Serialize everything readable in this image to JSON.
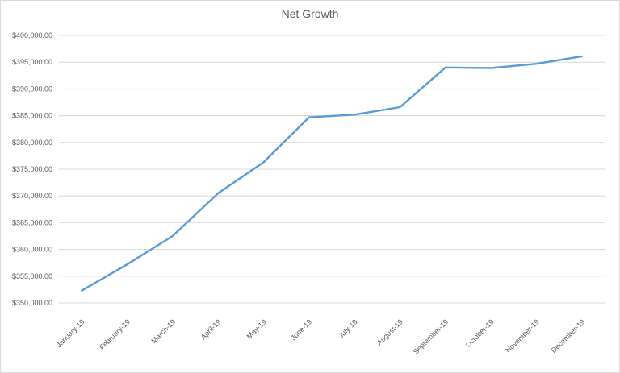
{
  "chart_data": {
    "type": "line",
    "title": "Net Growth",
    "xlabel": "",
    "ylabel": "",
    "categories": [
      "January-19",
      "February-19",
      "March-19",
      "April-19",
      "May-19",
      "June-19",
      "July-19",
      "August-19",
      "September-19",
      "October-19",
      "November-19",
      "December-19"
    ],
    "series": [
      {
        "values": [
          352300,
          357200,
          362500,
          370500,
          376300,
          384700,
          385200,
          386600,
          394000,
          393900,
          394700,
          396100
        ]
      }
    ],
    "ylim": [
      350000,
      400000
    ],
    "ytick_step": 5000,
    "ytick_labels": [
      "$350,000.00",
      "$355,000.00",
      "$360,000.00",
      "$365,000.00",
      "$370,000.00",
      "$375,000.00",
      "$380,000.00",
      "$385,000.00",
      "$390,000.00",
      "$395,000.00",
      "$400,000.00"
    ],
    "grid": true,
    "legend": "none",
    "colors": {
      "series": "#5b9bd5",
      "grid": "#d9d9d9",
      "text": "#595959"
    }
  }
}
